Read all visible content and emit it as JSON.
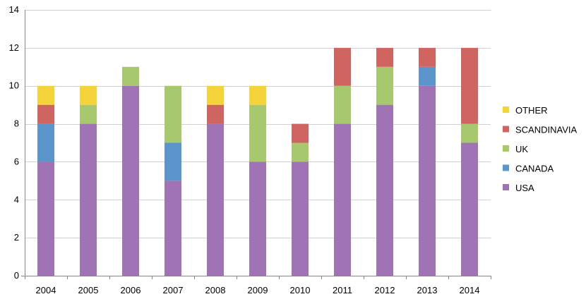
{
  "chart_data": {
    "type": "bar",
    "stacked": true,
    "title": "",
    "xlabel": "",
    "ylabel": "",
    "ylim": [
      0,
      14
    ],
    "yticks": [
      0,
      2,
      4,
      6,
      8,
      10,
      12,
      14
    ],
    "grid": true,
    "legend_position": "right",
    "categories": [
      "2004",
      "2005",
      "2006",
      "2007",
      "2008",
      "2009",
      "2010",
      "2011",
      "2012",
      "2013",
      "2014"
    ],
    "series": [
      {
        "name": "USA",
        "color": "#a074b4",
        "values": [
          6,
          8,
          10,
          5,
          8,
          6,
          6,
          8,
          9,
          10,
          7
        ]
      },
      {
        "name": "CANADA",
        "color": "#5b95cc",
        "values": [
          2,
          0,
          0,
          2,
          0,
          0,
          0,
          0,
          0,
          1,
          0
        ]
      },
      {
        "name": "UK",
        "color": "#a8c870",
        "values": [
          0,
          1,
          1,
          3,
          0,
          3,
          1,
          2,
          2,
          0,
          1
        ]
      },
      {
        "name": "SCANDINAVIA",
        "color": "#d06461",
        "values": [
          1,
          0,
          0,
          0,
          1,
          0,
          1,
          2,
          1,
          1,
          4
        ]
      },
      {
        "name": "OTHER",
        "color": "#f5d33a",
        "values": [
          1,
          1,
          0,
          0,
          1,
          1,
          0,
          0,
          0,
          0,
          0
        ]
      }
    ],
    "legend_order": [
      "OTHER",
      "SCANDINAVIA",
      "UK",
      "CANADA",
      "USA"
    ]
  }
}
